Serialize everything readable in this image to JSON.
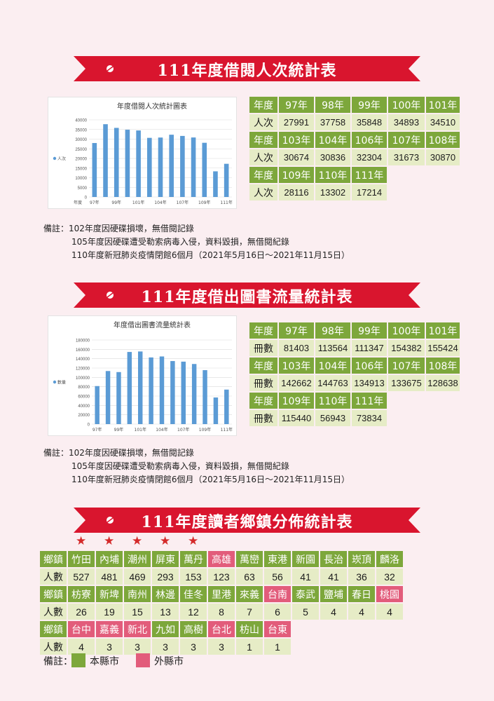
{
  "section1": {
    "title": "111年度借閱人次統計表",
    "chart_title": "年度借閱人次統計圖表",
    "table": [
      [
        "年度",
        "97年",
        "98年",
        "99年",
        "100年",
        "101年"
      ],
      [
        "人次",
        "27991",
        "37758",
        "35848",
        "34893",
        "34510"
      ],
      [
        "年度",
        "103年",
        "104年",
        "106年",
        "107年",
        "108年"
      ],
      [
        "人次",
        "30674",
        "30836",
        "32304",
        "31673",
        "30870"
      ],
      [
        "年度",
        "109年",
        "110年",
        "111年"
      ],
      [
        "人次",
        "28116",
        "13302",
        "17214"
      ]
    ],
    "notes": [
      "備註：102年度因硬碟損壞，無借閱記錄",
      "105年度因硬碟遭受勒索病毒入侵，資料毀損，無借閱紀錄",
      "110年度新冠肺炎疫情閉館6個月（2021年5月16日～2021年11月15日）"
    ]
  },
  "section2": {
    "title": "111年度借出圖書流量統計表",
    "chart_title": "年度借出圖書流量統計表",
    "table": [
      [
        "年度",
        "97年",
        "98年",
        "99年",
        "100年",
        "101年"
      ],
      [
        "冊數",
        "81403",
        "113564",
        "111347",
        "154382",
        "155424"
      ],
      [
        "年度",
        "103年",
        "104年",
        "106年",
        "107年",
        "108年"
      ],
      [
        "冊數",
        "142662",
        "144763",
        "134913",
        "133675",
        "128638"
      ],
      [
        "年度",
        "109年",
        "110年",
        "111年"
      ],
      [
        "冊數",
        "115440",
        "56943",
        "73834"
      ]
    ],
    "notes": [
      "備註：102年度因硬碟損壞，無借閱記錄",
      "105年度因硬碟遭受勒索病毒入侵，資料毀損，無借閱紀錄",
      "110年度新冠肺炎疫情閉館6個月（2021年5月16日～2021年11月15日）"
    ]
  },
  "section3": {
    "title": "111年度讀者鄉鎮分佈統計表",
    "row_label_town": "鄉鎮",
    "row_label_count": "人數",
    "rows": [
      [
        [
          "竹田",
          "527",
          "g"
        ],
        [
          "內埔",
          "481",
          "g"
        ],
        [
          "潮州",
          "469",
          "g"
        ],
        [
          "屏東",
          "293",
          "g"
        ],
        [
          "萬丹",
          "153",
          "g"
        ],
        [
          "高雄",
          "123",
          "p"
        ],
        [
          "萬巒",
          "63",
          "g"
        ],
        [
          "東港",
          "56",
          "g"
        ],
        [
          "新園",
          "41",
          "g"
        ],
        [
          "長治",
          "41",
          "g"
        ],
        [
          "崁頂",
          "36",
          "g"
        ],
        [
          "麟洛",
          "32",
          "g"
        ]
      ],
      [
        [
          "枋寮",
          "26",
          "g"
        ],
        [
          "新埤",
          "19",
          "g"
        ],
        [
          "南州",
          "15",
          "g"
        ],
        [
          "林邊",
          "13",
          "g"
        ],
        [
          "佳冬",
          "12",
          "g"
        ],
        [
          "里港",
          "8",
          "g"
        ],
        [
          "來義",
          "7",
          "g"
        ],
        [
          "台南",
          "6",
          "p"
        ],
        [
          "泰武",
          "5",
          "g"
        ],
        [
          "鹽埔",
          "4",
          "g"
        ],
        [
          "春日",
          "4",
          "g"
        ],
        [
          "桃園",
          "4",
          "p"
        ]
      ],
      [
        [
          "台中",
          "4",
          "p"
        ],
        [
          "嘉義",
          "3",
          "p"
        ],
        [
          "新北",
          "3",
          "p"
        ],
        [
          "九如",
          "3",
          "g"
        ],
        [
          "高樹",
          "3",
          "g"
        ],
        [
          "台北",
          "3",
          "p"
        ],
        [
          "枋山",
          "1",
          "g"
        ],
        [
          "台東",
          "1",
          "p"
        ]
      ]
    ],
    "stars_count": 5,
    "legend_label": "備註：",
    "legend_local": "本縣市",
    "legend_other": "外縣市"
  },
  "colors": {
    "green": "#7da73b",
    "pink": "#e25c7b",
    "light": "#e6ecc6",
    "banner": "#d9152e",
    "bar": "#5b9bd5"
  },
  "chart_data": [
    {
      "type": "bar",
      "title": "年度借閱人次統計圖表",
      "legend": "人次",
      "categories": [
        "97年",
        "98年",
        "99年",
        "100年",
        "101年",
        "103年",
        "104年",
        "106年",
        "107年",
        "108年",
        "109年",
        "110年",
        "111年"
      ],
      "axis_tick_labels": [
        "年度",
        "97年",
        "99年",
        "101年",
        "104年",
        "107年",
        "109年",
        "111年"
      ],
      "values": [
        27991,
        37758,
        35848,
        34893,
        34510,
        30674,
        30836,
        32304,
        31673,
        30870,
        28116,
        13302,
        17214
      ],
      "yticks": [
        "0",
        "5000",
        "10000",
        "15000",
        "20000",
        "25000",
        "30000",
        "35000",
        "40000"
      ],
      "ylim": [
        0,
        40000
      ]
    },
    {
      "type": "bar",
      "title": "年度借出圖書流量統計表",
      "legend": "數量",
      "categories": [
        "97年",
        "98年",
        "99年",
        "100年",
        "101年",
        "103年",
        "104年",
        "106年",
        "107年",
        "108年",
        "109年",
        "110年",
        "111年"
      ],
      "axis_tick_labels": [
        "97年",
        "99年",
        "101年",
        "104年",
        "107年",
        "109年",
        "111年"
      ],
      "values": [
        81403,
        113564,
        111347,
        154382,
        155424,
        142662,
        144763,
        134913,
        133675,
        128638,
        115440,
        56943,
        73834
      ],
      "yticks": [
        "0",
        "20000",
        "40000",
        "60000",
        "80000",
        "100000",
        "120000",
        "140000",
        "160000",
        "180000"
      ],
      "ylim": [
        0,
        180000
      ]
    }
  ]
}
